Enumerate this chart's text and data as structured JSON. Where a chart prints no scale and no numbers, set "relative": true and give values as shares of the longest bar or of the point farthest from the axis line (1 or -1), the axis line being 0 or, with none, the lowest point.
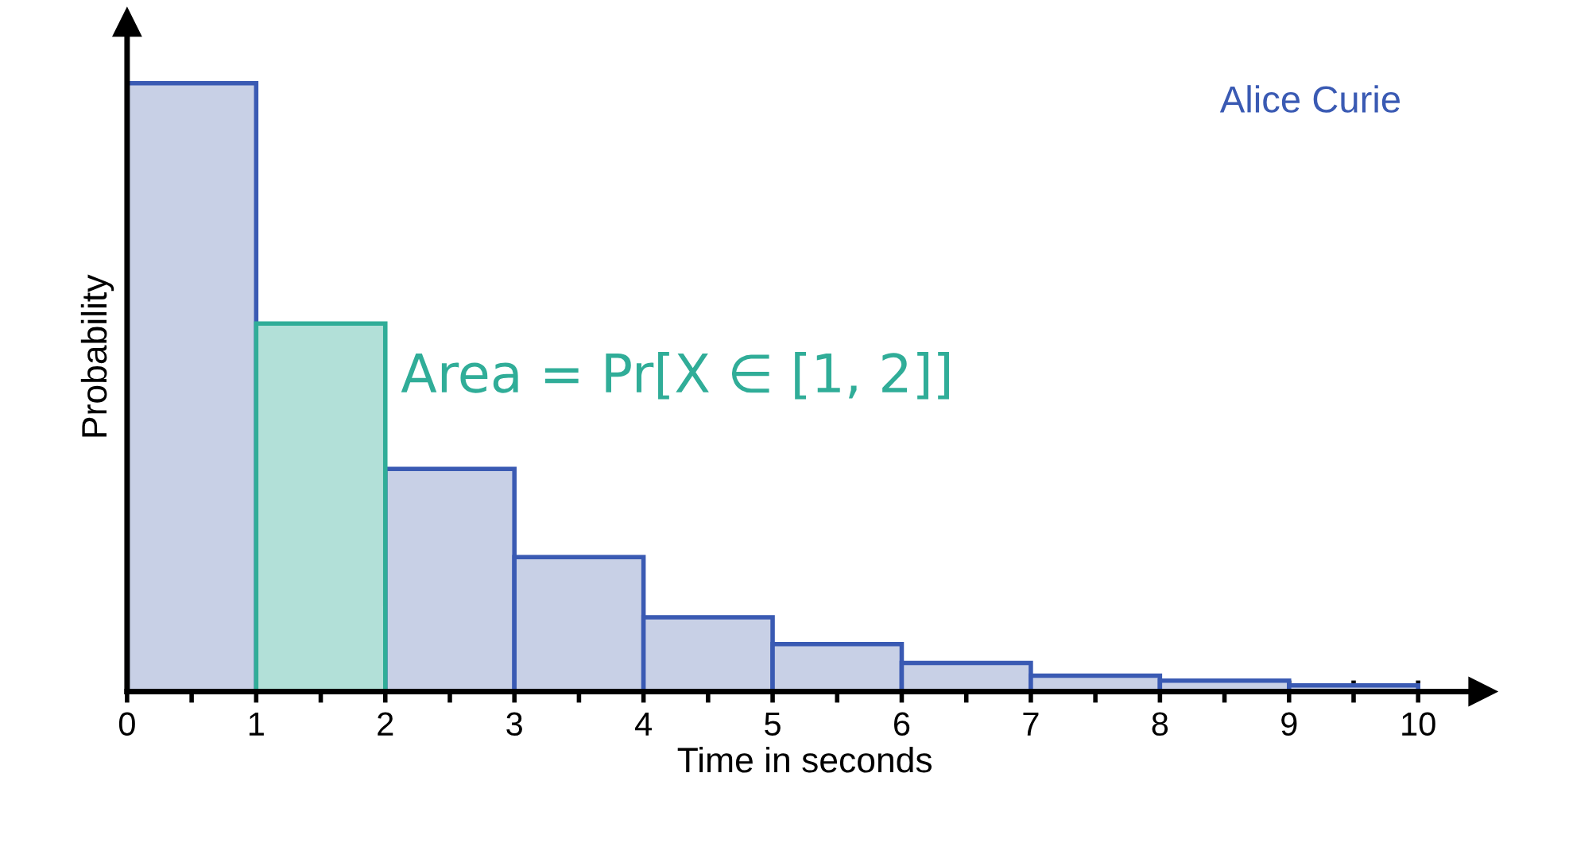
{
  "chart_data": {
    "type": "bar",
    "relative": true,
    "xlabel": "Time in seconds",
    "ylabel": "Probability",
    "x": [
      0.5,
      1.5,
      2.5,
      3.5,
      4.5,
      5.5,
      6.5,
      7.5,
      8.5,
      9.5
    ],
    "values": [
      1,
      0.605,
      0.366,
      0.221,
      0.122,
      0.078,
      0.047,
      0.026,
      0.018,
      0.01
    ],
    "colors": [
      "#c8d0e6",
      "#b2e0d8",
      "#c8d0e6",
      "#c8d0e6",
      "#c8d0e6",
      "#c8d0e6",
      "#c8d0e6",
      "#c8d0e6",
      "#c8d0e6",
      "#c8d0e6"
    ],
    "xlim": [
      0,
      10.5
    ],
    "xticks": [
      0,
      {
        "value": 0.5,
        "label": null
      },
      1,
      {
        "value": 1.5,
        "label": null
      },
      2,
      {
        "value": 2.5,
        "label": null
      },
      3,
      {
        "value": 3.5,
        "label": null
      },
      4,
      {
        "value": 4.5,
        "label": null
      },
      5,
      {
        "value": 5.5,
        "label": null
      },
      6,
      {
        "value": 6.5,
        "label": null
      },
      7,
      {
        "value": 7.5,
        "label": null
      },
      8,
      {
        "value": 8.5,
        "label": null
      },
      9,
      {
        "value": 9.5,
        "label": null
      },
      10
    ],
    "annotations": [
      "Area = Pr[X ∈ [1, 2]]",
      "Alice Curie"
    ],
    "grid": false,
    "legend": false
  }
}
